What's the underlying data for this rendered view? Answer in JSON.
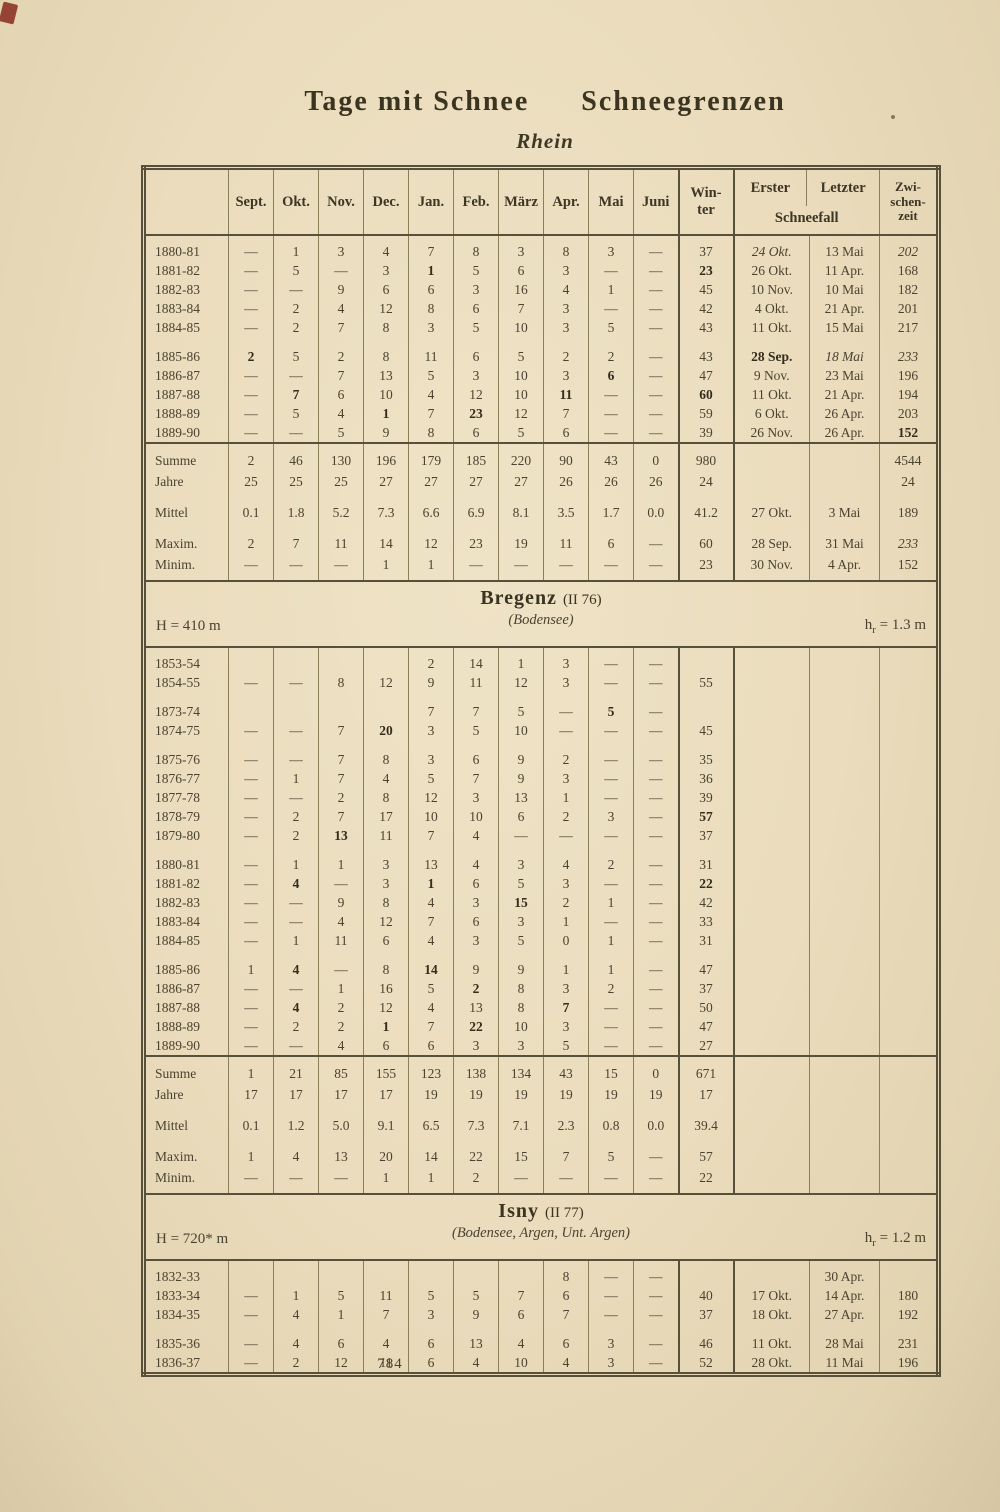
{
  "page": {
    "title_left": "Tage mit Schnee",
    "title_right": "Schneegrenzen",
    "subtitle": "Rhein",
    "page_number": "784"
  },
  "table": {
    "months": [
      "Sept.",
      "Okt.",
      "Nov.",
      "Dec.",
      "Jan.",
      "Feb.",
      "März",
      "Apr.",
      "Mai",
      "Juni"
    ],
    "winter": [
      "Win-",
      "ter"
    ],
    "schneefall": {
      "first": "Erster",
      "last": "Letzter",
      "span": "Schneefall"
    },
    "zwischenzeit": [
      "Zwi-",
      "schen-",
      "zeit"
    ],
    "sections": [
      {
        "kind": "group",
        "rows": [
          {
            "y": "1880-81",
            "c": [
              "—",
              "1",
              "3",
              "4",
              "7",
              "8",
              "3",
              "8",
              "3",
              "—",
              "37",
              "i:24 Okt.",
              "13 Mai",
              "i:202"
            ]
          },
          {
            "y": "1881-82",
            "c": [
              "—",
              "5",
              "—",
              "3",
              "b:1",
              "5",
              "6",
              "3",
              "—",
              "—",
              "b:23",
              "26 Okt.",
              "11 Apr.",
              "168"
            ]
          },
          {
            "y": "1882-83",
            "c": [
              "—",
              "—",
              "9",
              "6",
              "6",
              "3",
              "16",
              "4",
              "1",
              "—",
              "45",
              "10 Nov.",
              "10 Mai",
              "182"
            ]
          },
          {
            "y": "1883-84",
            "c": [
              "—",
              "2",
              "4",
              "12",
              "8",
              "6",
              "7",
              "3",
              "—",
              "—",
              "42",
              "4 Okt.",
              "21 Apr.",
              "201"
            ]
          },
          {
            "y": "1884-85",
            "c": [
              "—",
              "2",
              "7",
              "8",
              "3",
              "5",
              "10",
              "3",
              "5",
              "—",
              "43",
              "11 Okt.",
              "15 Mai",
              "217"
            ]
          }
        ]
      },
      {
        "kind": "group",
        "rows": [
          {
            "y": "1885-86",
            "c": [
              "b:2",
              "5",
              "2",
              "8",
              "11",
              "6",
              "5",
              "2",
              "2",
              "—",
              "43",
              "b:28 Sep.",
              "i:18 Mai",
              "i:233"
            ]
          },
          {
            "y": "1886-87",
            "c": [
              "—",
              "—",
              "7",
              "13",
              "5",
              "3",
              "10",
              "3",
              "b:6",
              "—",
              "47",
              "9 Nov.",
              "23 Mai",
              "196"
            ]
          },
          {
            "y": "1887-88",
            "c": [
              "—",
              "b:7",
              "6",
              "10",
              "4",
              "12",
              "10",
              "b:11",
              "—",
              "—",
              "b:60",
              "11 Okt.",
              "21 Apr.",
              "194"
            ]
          },
          {
            "y": "1888-89",
            "c": [
              "—",
              "5",
              "4",
              "b:1",
              "7",
              "b:23",
              "12",
              "7",
              "—",
              "—",
              "59",
              "6 Okt.",
              "26 Apr.",
              "203"
            ]
          },
          {
            "y": "1889-90",
            "c": [
              "—",
              "—",
              "5",
              "9",
              "8",
              "6",
              "5",
              "6",
              "—",
              "—",
              "39",
              "26 Nov.",
              "26 Apr.",
              "b:152"
            ]
          }
        ]
      },
      {
        "kind": "summary",
        "rows": [
          {
            "y": "Summe",
            "c": [
              "2",
              "46",
              "130",
              "196",
              "179",
              "185",
              "220",
              "90",
              "43",
              "0",
              "980",
              "",
              "",
              "4544"
            ]
          },
          {
            "y": "Jahre",
            "c": [
              "25",
              "25",
              "25",
              "27",
              "27",
              "27",
              "27",
              "26",
              "26",
              "26",
              "24",
              "",
              "",
              "24"
            ]
          },
          {
            "y": "Mittel",
            "c": [
              "0.1",
              "1.8",
              "5.2",
              "7.3",
              "6.6",
              "6.9",
              "8.1",
              "3.5",
              "1.7",
              "0.0",
              "41.2",
              "27 Okt.",
              "3 Mai",
              "189"
            ]
          },
          {
            "y": "Maxim.",
            "c": [
              "2",
              "7",
              "11",
              "14",
              "12",
              "23",
              "19",
              "11",
              "6",
              "—",
              "60",
              "28 Sep.",
              "31 Mai",
              "i:233"
            ]
          },
          {
            "y": "Minim.",
            "c": [
              "—",
              "—",
              "—",
              "1",
              "1",
              "—",
              "—",
              "—",
              "—",
              "—",
              "23",
              "30 Nov.",
              "4 Apr.",
              "152"
            ]
          }
        ]
      },
      {
        "kind": "band",
        "h": "H = 410 m",
        "title": "Bregenz",
        "ref": "(II 76)",
        "basins": "(Bodensee)",
        "hr": "1.3 m"
      },
      {
        "kind": "group",
        "rows": [
          {
            "y": "1853-54",
            "c": [
              "",
              "",
              "",
              "",
              "2",
              "14",
              "1",
              "3",
              "—",
              "—",
              "",
              "",
              "",
              ""
            ]
          },
          {
            "y": "1854-55",
            "c": [
              "—",
              "—",
              "8",
              "12",
              "9",
              "11",
              "12",
              "3",
              "—",
              "—",
              "55",
              "",
              "",
              ""
            ]
          }
        ]
      },
      {
        "kind": "group",
        "rows": [
          {
            "y": "1873-74",
            "c": [
              "",
              "",
              "",
              "",
              "7",
              "7",
              "5",
              "—",
              "b:5",
              "—",
              "",
              "",
              "",
              ""
            ]
          },
          {
            "y": "1874-75",
            "c": [
              "—",
              "—",
              "7",
              "b:20",
              "3",
              "5",
              "10",
              "—",
              "—",
              "—",
              "45",
              "",
              "",
              ""
            ]
          }
        ]
      },
      {
        "kind": "group",
        "rows": [
          {
            "y": "1875-76",
            "c": [
              "—",
              "—",
              "7",
              "8",
              "3",
              "6",
              "9",
              "2",
              "—",
              "—",
              "35",
              "",
              "",
              ""
            ]
          },
          {
            "y": "1876-77",
            "c": [
              "—",
              "1",
              "7",
              "4",
              "5",
              "7",
              "9",
              "3",
              "—",
              "—",
              "36",
              "",
              "",
              ""
            ]
          },
          {
            "y": "1877-78",
            "c": [
              "—",
              "—",
              "2",
              "8",
              "12",
              "3",
              "13",
              "1",
              "—",
              "—",
              "39",
              "",
              "",
              ""
            ]
          },
          {
            "y": "1878-79",
            "c": [
              "—",
              "2",
              "7",
              "17",
              "10",
              "10",
              "6",
              "2",
              "3",
              "—",
              "b:57",
              "",
              "",
              ""
            ]
          },
          {
            "y": "1879-80",
            "c": [
              "—",
              "2",
              "b:13",
              "11",
              "7",
              "4",
              "—",
              "—",
              "—",
              "—",
              "37",
              "",
              "",
              ""
            ]
          }
        ]
      },
      {
        "kind": "group",
        "rows": [
          {
            "y": "1880-81",
            "c": [
              "—",
              "1",
              "1",
              "3",
              "13",
              "4",
              "3",
              "4",
              "2",
              "—",
              "31",
              "",
              "",
              ""
            ]
          },
          {
            "y": "1881-82",
            "c": [
              "—",
              "b:4",
              "—",
              "3",
              "b:1",
              "6",
              "5",
              "3",
              "—",
              "—",
              "b:22",
              "",
              "",
              ""
            ]
          },
          {
            "y": "1882-83",
            "c": [
              "—",
              "—",
              "9",
              "8",
              "4",
              "3",
              "b:15",
              "2",
              "1",
              "—",
              "42",
              "",
              "",
              ""
            ]
          },
          {
            "y": "1883-84",
            "c": [
              "—",
              "—",
              "4",
              "12",
              "7",
              "6",
              "3",
              "1",
              "—",
              "—",
              "33",
              "",
              "",
              ""
            ]
          },
          {
            "y": "1884-85",
            "c": [
              "—",
              "1",
              "11",
              "6",
              "4",
              "3",
              "5",
              "0",
              "1",
              "—",
              "31",
              "",
              "",
              ""
            ]
          }
        ]
      },
      {
        "kind": "group",
        "rows": [
          {
            "y": "1885-86",
            "c": [
              "1",
              "b:4",
              "—",
              "8",
              "b:14",
              "9",
              "9",
              "1",
              "1",
              "—",
              "47",
              "",
              "",
              ""
            ]
          },
          {
            "y": "1886-87",
            "c": [
              "—",
              "—",
              "1",
              "16",
              "5",
              "b:2",
              "8",
              "3",
              "2",
              "—",
              "37",
              "",
              "",
              ""
            ]
          },
          {
            "y": "1887-88",
            "c": [
              "—",
              "b:4",
              "2",
              "12",
              "4",
              "13",
              "8",
              "b:7",
              "—",
              "—",
              "50",
              "",
              "",
              ""
            ]
          },
          {
            "y": "1888-89",
            "c": [
              "—",
              "2",
              "2",
              "b:1",
              "7",
              "b:22",
              "10",
              "3",
              "—",
              "—",
              "47",
              "",
              "",
              ""
            ]
          },
          {
            "y": "1889-90",
            "c": [
              "—",
              "—",
              "4",
              "6",
              "6",
              "3",
              "3",
              "5",
              "—",
              "—",
              "27",
              "",
              "",
              ""
            ]
          }
        ]
      },
      {
        "kind": "summary",
        "rows": [
          {
            "y": "Summe",
            "c": [
              "1",
              "21",
              "85",
              "155",
              "123",
              "138",
              "134",
              "43",
              "15",
              "0",
              "671",
              "",
              "",
              ""
            ]
          },
          {
            "y": "Jahre",
            "c": [
              "17",
              "17",
              "17",
              "17",
              "19",
              "19",
              "19",
              "19",
              "19",
              "19",
              "17",
              "",
              "",
              ""
            ]
          },
          {
            "y": "Mittel",
            "c": [
              "0.1",
              "1.2",
              "5.0",
              "9.1",
              "6.5",
              "7.3",
              "7.1",
              "2.3",
              "0.8",
              "0.0",
              "39.4",
              "",
              "",
              ""
            ]
          },
          {
            "y": "Maxim.",
            "c": [
              "1",
              "4",
              "13",
              "20",
              "14",
              "22",
              "15",
              "7",
              "5",
              "—",
              "57",
              "",
              "",
              ""
            ]
          },
          {
            "y": "Minim.",
            "c": [
              "—",
              "—",
              "—",
              "1",
              "1",
              "2",
              "—",
              "—",
              "—",
              "—",
              "22",
              "",
              "",
              ""
            ]
          }
        ]
      },
      {
        "kind": "band",
        "h": "H = 720* m",
        "title": "Isny",
        "ref": "(II 77)",
        "basins": "(Bodensee, Argen, Unt. Argen)",
        "hr": "1.2 m"
      },
      {
        "kind": "group",
        "rows": [
          {
            "y": "1832-33",
            "c": [
              "",
              "",
              "",
              "",
              "",
              "",
              "",
              "8",
              "—",
              "—",
              "",
              "",
              "30 Apr.",
              ""
            ]
          },
          {
            "y": "1833-34",
            "c": [
              "—",
              "1",
              "5",
              "11",
              "5",
              "5",
              "7",
              "6",
              "—",
              "—",
              "40",
              "17 Okt.",
              "14 Apr.",
              "180"
            ]
          },
          {
            "y": "1834-35",
            "c": [
              "—",
              "4",
              "1",
              "7",
              "3",
              "9",
              "6",
              "7",
              "—",
              "—",
              "37",
              "18 Okt.",
              "27 Apr.",
              "192"
            ]
          }
        ]
      },
      {
        "kind": "group",
        "rows": [
          {
            "y": "1835-36",
            "c": [
              "—",
              "4",
              "6",
              "4",
              "6",
              "13",
              "4",
              "6",
              "3",
              "—",
              "46",
              "11 Okt.",
              "28 Mai",
              "231"
            ]
          },
          {
            "y": "1836-37",
            "c": [
              "—",
              "2",
              "12",
              "11",
              "6",
              "4",
              "10",
              "4",
              "3",
              "—",
              "52",
              "28 Okt.",
              "11 Mai",
              "196"
            ]
          }
        ]
      }
    ]
  }
}
